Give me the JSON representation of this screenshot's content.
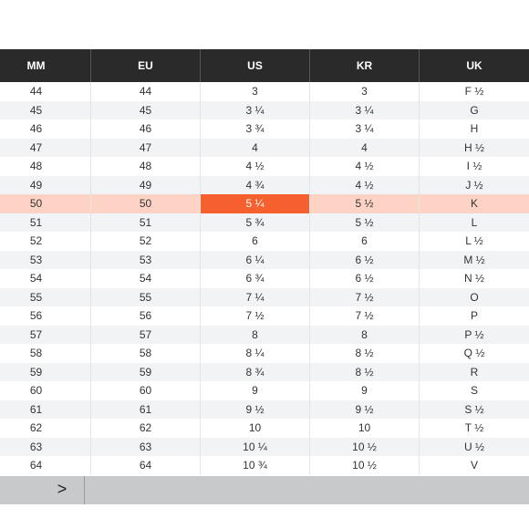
{
  "table": {
    "header": [
      "MM",
      "EU",
      "US",
      "KR",
      "UK"
    ],
    "rows": [
      [
        "44",
        "44",
        "3",
        "3",
        "F ½"
      ],
      [
        "45",
        "45",
        "3 ¼",
        "3 ¼",
        "G"
      ],
      [
        "46",
        "46",
        "3 ¾",
        "3 ¼",
        "H"
      ],
      [
        "47",
        "47",
        "4",
        "4",
        "H ½"
      ],
      [
        "48",
        "48",
        "4 ½",
        "4 ½",
        "I ½"
      ],
      [
        "49",
        "49",
        "4 ¾",
        "4 ½",
        "J ½"
      ],
      [
        "50",
        "50",
        "5 ¼",
        "5 ½",
        "K"
      ],
      [
        "51",
        "51",
        "5 ¾",
        "5 ½",
        "L"
      ],
      [
        "52",
        "52",
        "6",
        "6",
        "L ½"
      ],
      [
        "53",
        "53",
        "6 ¼",
        "6 ½",
        "M ½"
      ],
      [
        "54",
        "54",
        "6 ¾",
        "6 ½",
        "N ½"
      ],
      [
        "55",
        "55",
        "7 ¼",
        "7 ½",
        "O"
      ],
      [
        "56",
        "56",
        "7 ½",
        "7 ½",
        "P"
      ],
      [
        "57",
        "57",
        "8",
        "8",
        "P ½"
      ],
      [
        "58",
        "58",
        "8 ¼",
        "8 ½",
        "Q ½"
      ],
      [
        "59",
        "59",
        "8 ¾",
        "8 ½",
        "R"
      ],
      [
        "60",
        "60",
        "9",
        "9",
        "S"
      ],
      [
        "61",
        "61",
        "9 ½",
        "9 ½",
        "S ½"
      ],
      [
        "62",
        "62",
        "10",
        "10",
        "T ½"
      ],
      [
        "63",
        "63",
        "10 ¼",
        "10 ½",
        "U ½"
      ],
      [
        "64",
        "64",
        "10 ¾",
        "10 ½",
        "V"
      ]
    ],
    "highlight_row": 6,
    "highlight_col": 2,
    "highlight_row_color": "#fdd3c6",
    "highlight_cell_color": "#f5602e"
  },
  "nav": {
    "next": ">"
  }
}
